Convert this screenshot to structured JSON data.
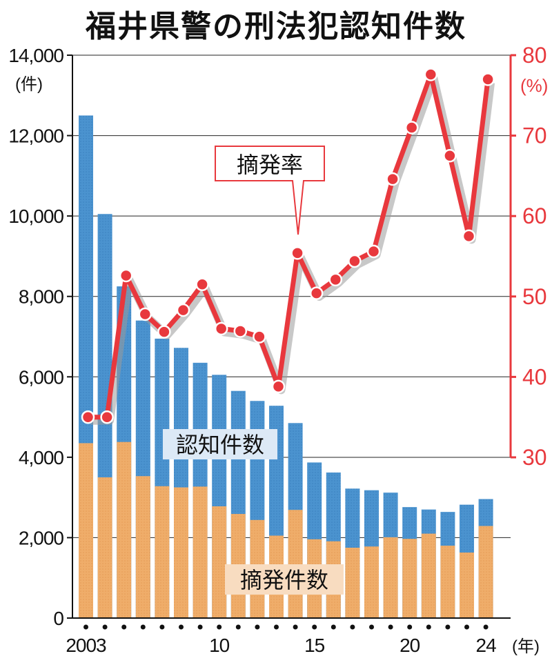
{
  "chart_data": {
    "type": "bar+line",
    "title": "福井県警の刑法犯認知件数",
    "categories": [
      "2003",
      "2004",
      "2005",
      "2006",
      "2007",
      "2008",
      "2009",
      "2010",
      "2011",
      "2012",
      "2013",
      "2014",
      "2015",
      "2016",
      "2017",
      "2018",
      "2019",
      "2020",
      "2021",
      "2022",
      "2023",
      "2024"
    ],
    "x_tick_labels": [
      "2003",
      "10",
      "15",
      "20",
      "24"
    ],
    "x_unit": "(年)",
    "left_axis": {
      "unit": "(件)",
      "ylim": [
        0,
        14000
      ],
      "ticks": [
        "0",
        "2,000",
        "4,000",
        "6,000",
        "8,000",
        "10,000",
        "12,000",
        "14,000"
      ]
    },
    "right_axis": {
      "unit": "(%)",
      "ylim": [
        30,
        80
      ],
      "ticks": [
        "30",
        "40",
        "50",
        "60",
        "70",
        "80"
      ],
      "color": "#e8383d"
    },
    "series": [
      {
        "name": "認知件数",
        "kind": "bar",
        "axis": "left",
        "color": "#4b93cf",
        "values": [
          12500,
          10050,
          8250,
          7400,
          6950,
          6720,
          6350,
          6050,
          5650,
          5400,
          5280,
          4850,
          3870,
          3620,
          3220,
          3180,
          3120,
          2760,
          2700,
          2640,
          2820,
          2960
        ]
      },
      {
        "name": "摘発件数",
        "kind": "bar",
        "axis": "left",
        "color": "#efad6a",
        "values": [
          4350,
          3500,
          4380,
          3530,
          3280,
          3250,
          3270,
          2780,
          2590,
          2440,
          2050,
          2690,
          1960,
          1910,
          1750,
          1780,
          2010,
          1970,
          2100,
          1800,
          1630,
          2290
        ]
      },
      {
        "name": "摘発率",
        "kind": "line",
        "axis": "right",
        "color": "#e8383d",
        "values": [
          35.0,
          35.0,
          52.6,
          47.8,
          45.6,
          48.3,
          51.5,
          46.0,
          45.7,
          45.0,
          38.8,
          55.4,
          50.4,
          52.1,
          54.4,
          55.6,
          64.6,
          71.0,
          77.6,
          67.5,
          57.5,
          77.0
        ]
      }
    ],
    "labels": {
      "recognized": "認知件数",
      "cleared": "摘発件数",
      "rate": "摘発率"
    }
  }
}
